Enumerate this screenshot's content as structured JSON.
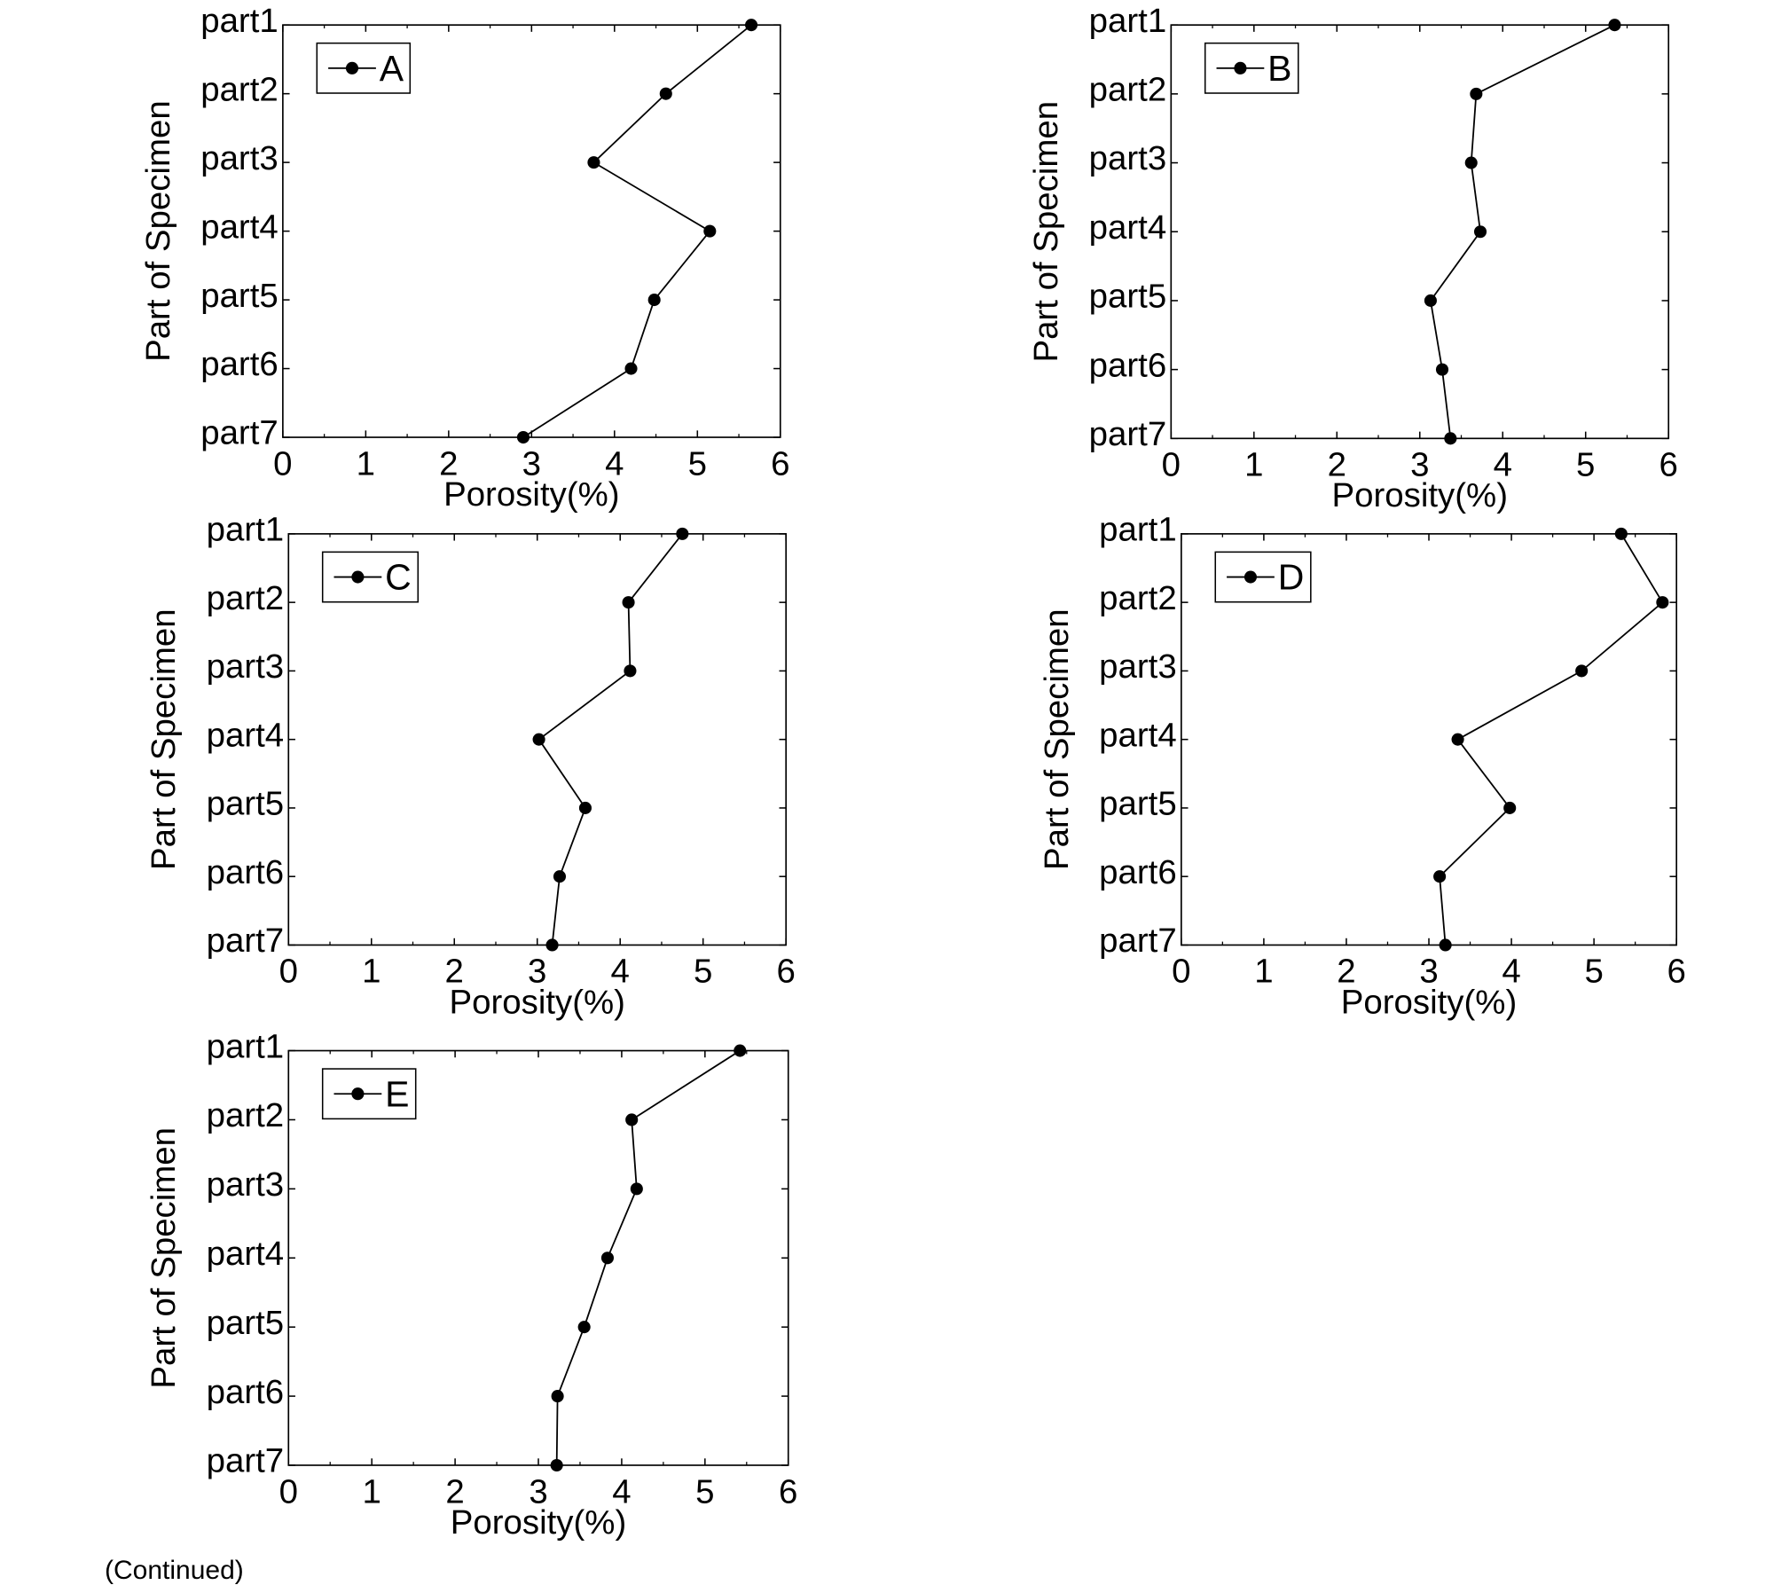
{
  "caption": "(Continued)",
  "chart_data": [
    {
      "type": "line",
      "xlabel": "Porosity(%)",
      "ylabel": "Part of Specimen",
      "xlim": [
        0,
        6
      ],
      "xticks": [
        "0",
        "1",
        "2",
        "3",
        "4",
        "5",
        "6"
      ],
      "categories": [
        "part1",
        "part2",
        "part3",
        "part4",
        "part5",
        "part6",
        "part7"
      ],
      "legend_position": "top-left",
      "grid": false,
      "series": [
        {
          "name": "A",
          "marker": "circle-filled",
          "color": "#000000",
          "values": [
            5.65,
            4.62,
            3.75,
            5.15,
            4.48,
            4.2,
            2.9
          ]
        }
      ]
    },
    {
      "type": "line",
      "xlabel": "Porosity(%)",
      "ylabel": "Part of Specimen",
      "xlim": [
        0,
        6
      ],
      "xticks": [
        "0",
        "1",
        "2",
        "3",
        "4",
        "5",
        "6"
      ],
      "categories": [
        "part1",
        "part2",
        "part3",
        "part4",
        "part5",
        "part6",
        "part7"
      ],
      "legend_position": "top-left",
      "grid": false,
      "series": [
        {
          "name": "B",
          "marker": "circle-filled",
          "color": "#000000",
          "values": [
            5.35,
            3.68,
            3.62,
            3.73,
            3.13,
            3.27,
            3.37
          ]
        }
      ]
    },
    {
      "type": "line",
      "xlabel": "Porosity(%)",
      "ylabel": "Part of Specimen",
      "xlim": [
        0,
        6
      ],
      "xticks": [
        "0",
        "1",
        "2",
        "3",
        "4",
        "5",
        "6"
      ],
      "categories": [
        "part1",
        "part2",
        "part3",
        "part4",
        "part5",
        "part6",
        "part7"
      ],
      "legend_position": "top-left",
      "grid": false,
      "series": [
        {
          "name": "C",
          "marker": "circle-filled",
          "color": "#000000",
          "values": [
            4.75,
            4.1,
            4.12,
            3.02,
            3.58,
            3.27,
            3.18
          ]
        }
      ]
    },
    {
      "type": "line",
      "xlabel": "Porosity(%)",
      "ylabel": "Part of Specimen",
      "xlim": [
        0,
        6
      ],
      "xticks": [
        "0",
        "1",
        "2",
        "3",
        "4",
        "5",
        "6"
      ],
      "categories": [
        "part1",
        "part2",
        "part3",
        "part4",
        "part5",
        "part6",
        "part7"
      ],
      "legend_position": "top-left",
      "grid": false,
      "series": [
        {
          "name": "D",
          "marker": "circle-filled",
          "color": "#000000",
          "values": [
            5.33,
            5.83,
            4.85,
            3.35,
            3.98,
            3.13,
            3.2
          ]
        }
      ]
    },
    {
      "type": "line",
      "xlabel": "Porosity(%)",
      "ylabel": "Part of Specimen",
      "xlim": [
        0,
        6
      ],
      "xticks": [
        "0",
        "1",
        "2",
        "3",
        "4",
        "5",
        "6"
      ],
      "categories": [
        "part1",
        "part2",
        "part3",
        "part4",
        "part5",
        "part6",
        "part7"
      ],
      "legend_position": "top-left",
      "grid": false,
      "series": [
        {
          "name": "E",
          "marker": "circle-filled",
          "color": "#000000",
          "values": [
            5.42,
            4.12,
            4.18,
            3.83,
            3.55,
            3.23,
            3.22
          ]
        }
      ]
    }
  ]
}
